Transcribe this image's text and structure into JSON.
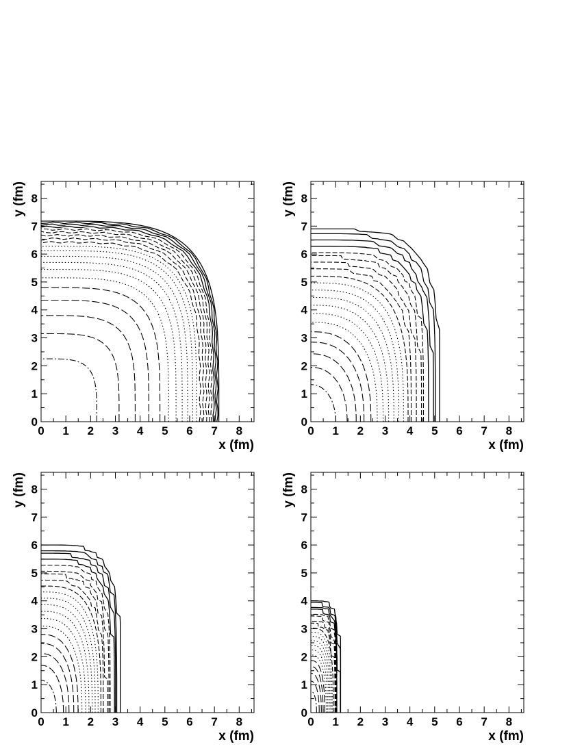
{
  "chart_data": [
    {
      "type": "line",
      "title": "",
      "xlabel": "x (fm)",
      "ylabel": "y (fm)",
      "xlim": [
        0,
        8.6
      ],
      "ylim": [
        0,
        8.6
      ],
      "xticks": [
        "0",
        "1",
        "2",
        "3",
        "4",
        "5",
        "6",
        "7",
        "8"
      ],
      "yticks": [
        "0",
        "1",
        "2",
        "3",
        "4",
        "5",
        "6",
        "7",
        "8"
      ],
      "grid": false,
      "contour_shape": "rounded",
      "contour_radii": [
        2.25,
        3.15,
        3.8,
        4.35,
        4.8,
        5.15,
        5.45,
        5.7,
        5.92,
        6.12,
        6.28,
        6.42,
        6.55,
        6.67,
        6.78,
        6.88,
        6.97,
        7.05,
        7.12,
        7.18
      ],
      "contour_styles": [
        "dashdot",
        "longdash",
        "longdash",
        "longdash",
        "longdash",
        "dotted",
        "dotted",
        "dotted",
        "dotted",
        "dotted",
        "dotted",
        "dashed",
        "dashed",
        "dashed",
        "dashed",
        "dashed",
        "solid",
        "solid",
        "solid",
        "solid"
      ]
    },
    {
      "type": "line",
      "title": "",
      "xlabel": "x (fm)",
      "ylabel": "y (fm)",
      "xlim": [
        0,
        8.6
      ],
      "ylim": [
        0,
        8.6
      ],
      "xticks": [
        "0",
        "1",
        "2",
        "3",
        "4",
        "5",
        "6",
        "7",
        "8"
      ],
      "yticks": [
        "0",
        "1",
        "2",
        "3",
        "4",
        "5",
        "6",
        "7",
        "8"
      ],
      "grid": false,
      "contour_shape": "stepped",
      "contour_radii": [
        2.05,
        3.0,
        3.6,
        4.1,
        4.5,
        4.8,
        5.05,
        5.25,
        5.42,
        5.57,
        5.7,
        5.82,
        5.92,
        6.02,
        6.1,
        6.18,
        6.25,
        6.31,
        6.36,
        6.4
      ],
      "contour_styles": [
        "dashdot",
        "longdash",
        "longdash",
        "longdash",
        "longdash",
        "dotted",
        "dotted",
        "dotted",
        "dotted",
        "dotted",
        "dotted",
        "dashed",
        "dashed",
        "dashed",
        "dashed",
        "dashed",
        "solid",
        "solid",
        "solid",
        "solid"
      ],
      "boundary": {
        "x_end": 5.2,
        "y_end": 6.9
      }
    },
    {
      "type": "line",
      "title": "",
      "xlabel": "x (fm)",
      "ylabel": "y (fm)",
      "xlim": [
        0,
        8.6
      ],
      "ylim": [
        0,
        8.6
      ],
      "xticks": [
        "0",
        "1",
        "2",
        "3",
        "4",
        "5",
        "6",
        "7",
        "8"
      ],
      "yticks": [
        "0",
        "1",
        "2",
        "3",
        "4",
        "5",
        "6",
        "7",
        "8"
      ],
      "grid": false,
      "contour_shape": "stepped",
      "contour_radii": [
        1.5,
        2.15,
        2.6,
        3.0,
        3.3,
        3.58,
        3.82,
        4.02,
        4.2,
        4.36,
        4.5,
        4.62,
        4.73,
        4.83,
        4.92,
        5.0,
        5.07,
        5.13,
        5.18,
        5.22
      ],
      "contour_styles": [
        "dashdot",
        "longdash",
        "longdash",
        "longdash",
        "longdash",
        "dotted",
        "dotted",
        "dotted",
        "dotted",
        "dotted",
        "dotted",
        "dashed",
        "dashed",
        "dashed",
        "dashed",
        "dashed",
        "solid",
        "solid",
        "solid",
        "solid"
      ],
      "boundary": {
        "x_end": 3.2,
        "y_end": 6.0
      }
    },
    {
      "type": "line",
      "title": "",
      "xlabel": "x (fm)",
      "ylabel": "y (fm)",
      "xlim": [
        0,
        8.6
      ],
      "ylim": [
        0,
        8.6
      ],
      "xticks": [
        "0",
        "1",
        "2",
        "3",
        "4",
        "5",
        "6",
        "7",
        "8"
      ],
      "yticks": [
        "0",
        "1",
        "2",
        "3",
        "4",
        "5",
        "6",
        "7",
        "8"
      ],
      "grid": false,
      "contour_shape": "stepped",
      "contour_radii": [
        0.55,
        0.85,
        1.1,
        1.35,
        1.55,
        1.75,
        1.95,
        2.12,
        2.28,
        2.43,
        2.57,
        2.7,
        2.82,
        2.93,
        3.03,
        3.12,
        3.2,
        3.28,
        3.35,
        3.42
      ],
      "contour_styles": [
        "dashdot",
        "longdash",
        "longdash",
        "longdash",
        "longdash",
        "dotted",
        "dotted",
        "dotted",
        "dotted",
        "dotted",
        "dotted",
        "dashed",
        "dashed",
        "dashed",
        "dashed",
        "dashed",
        "solid",
        "solid",
        "solid",
        "solid"
      ],
      "boundary": {
        "x_end": 1.2,
        "y_end": 4.0
      }
    }
  ]
}
